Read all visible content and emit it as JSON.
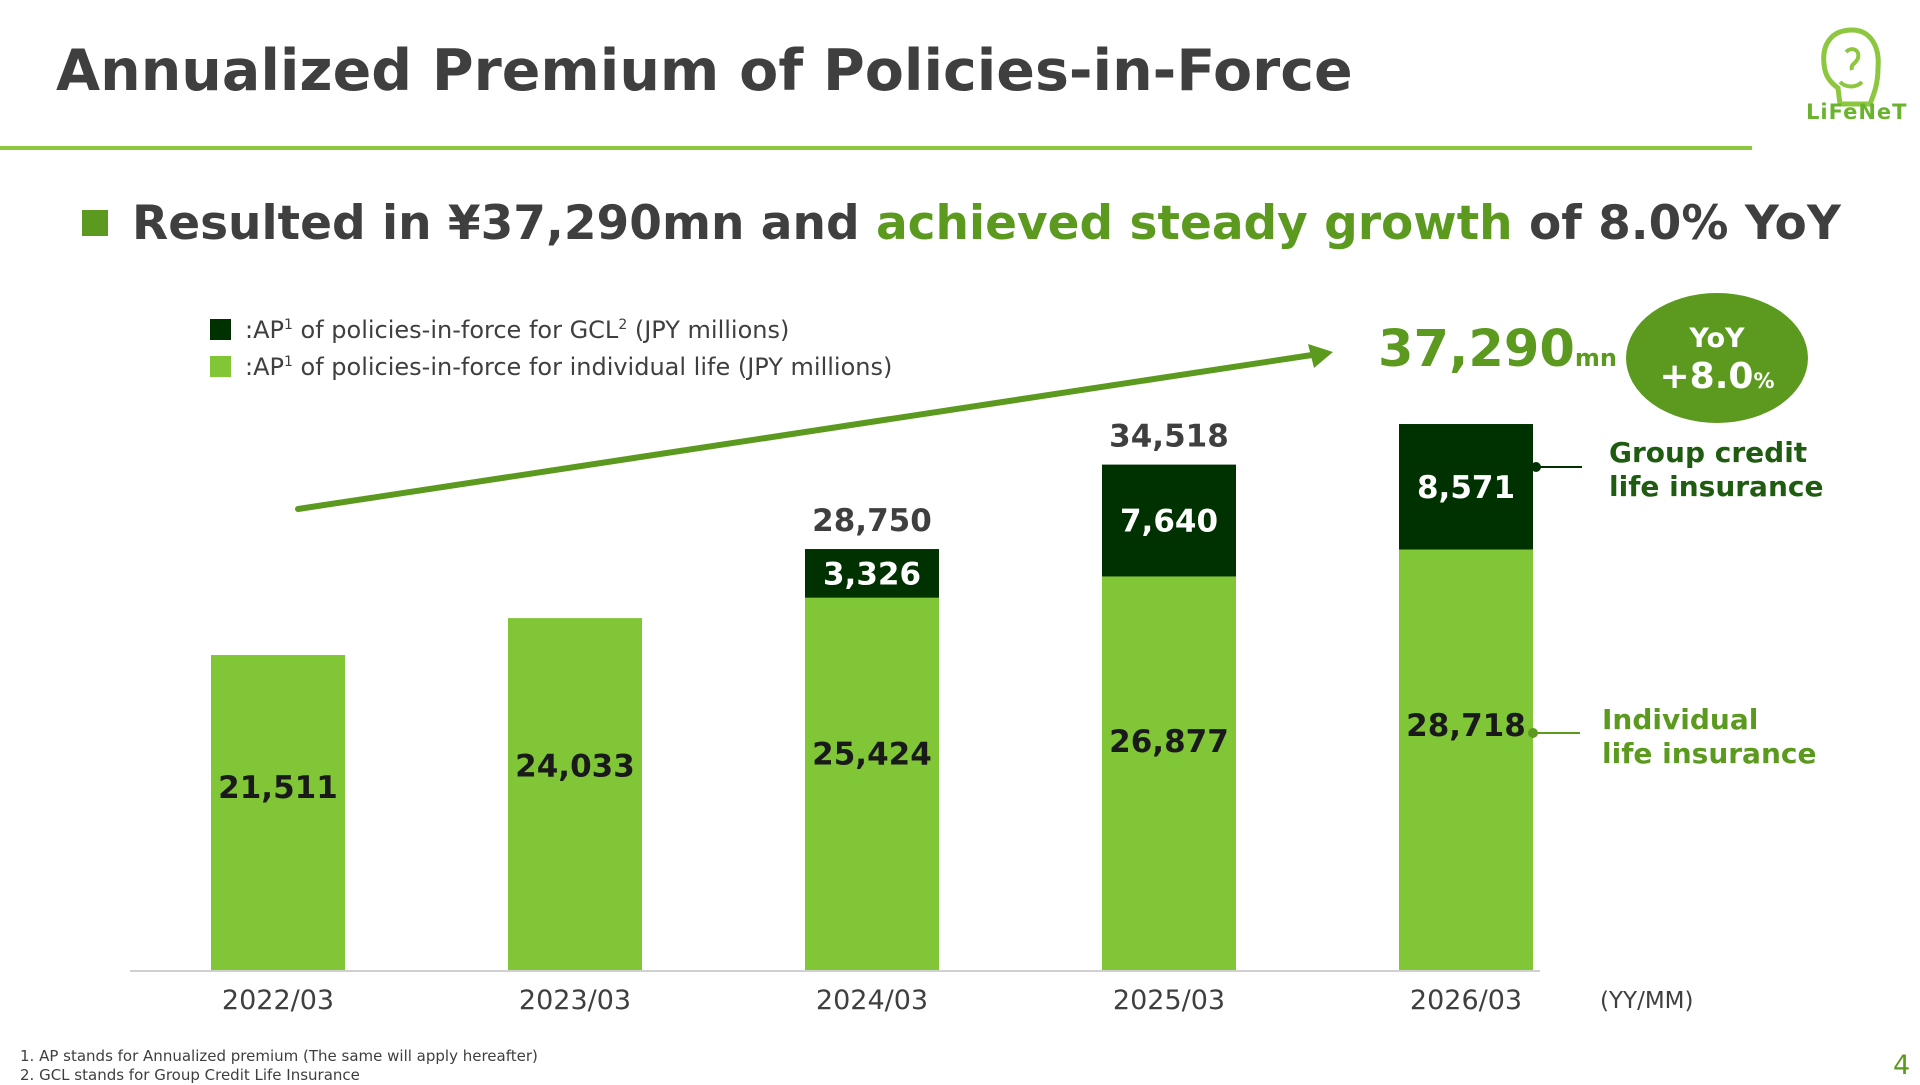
{
  "title": "Annualized Premium of Policies-in-Force",
  "logo_text": "LiFeNeT",
  "headline": {
    "part1": "Resulted in ¥37,290mn and ",
    "highlight": "achieved steady growth",
    "part2": " of 8.0% YoY"
  },
  "legend": {
    "gcl": {
      "prefix": ":AP",
      "sup1": "1",
      "middle": " of policies-in-force for GCL",
      "sup2": "2",
      "suffix": " (JPY millions)"
    },
    "individual": {
      "prefix": ":AP",
      "sup1": "1",
      "suffix": " of policies-in-force for individual life (JPY millions)"
    }
  },
  "total": {
    "value": "37,290",
    "unit": "mn"
  },
  "yoy": {
    "label": "YoY",
    "value": "+8.0",
    "unit": "%"
  },
  "annotations": {
    "gcl_line1": "Group credit",
    "gcl_line2": "life insurance",
    "ind_line1": "Individual",
    "ind_line2": "life insurance"
  },
  "colors": {
    "individual": "#80c636",
    "gcl": "#003100",
    "accent": "#5b9a1e",
    "text": "#3f3f3f"
  },
  "chart_data": {
    "type": "bar",
    "stacked": true,
    "categories": [
      "2022/03",
      "2023/03",
      "2024/03",
      "2025/03",
      "2026/03"
    ],
    "x_unit_label": "(YY/MM)",
    "series": [
      {
        "name": ":AP1 of policies-in-force for individual life (JPY millions)",
        "values": [
          21511,
          24033,
          25424,
          26877,
          28718
        ],
        "labels": [
          "21,511",
          "24,033",
          "25,424",
          "26,877",
          "28,718"
        ]
      },
      {
        "name": ":AP1 of policies-in-force for GCL2 (JPY millions)",
        "values": [
          null,
          null,
          3326,
          7640,
          8571
        ],
        "labels": [
          "",
          "",
          "3,326",
          "7,640",
          "8,571"
        ]
      }
    ],
    "totals": [
      null,
      null,
      28750,
      34518,
      null
    ],
    "total_labels": [
      "",
      "",
      "28,750",
      "34,518",
      ""
    ],
    "ylim": [
      0,
      37290
    ],
    "grid": false
  },
  "footnotes": [
    "1.  AP stands for Annualized premium  (The same will apply hereafter)",
    "2.  GCL stands for Group Credit Life Insurance"
  ],
  "page_number": "4"
}
